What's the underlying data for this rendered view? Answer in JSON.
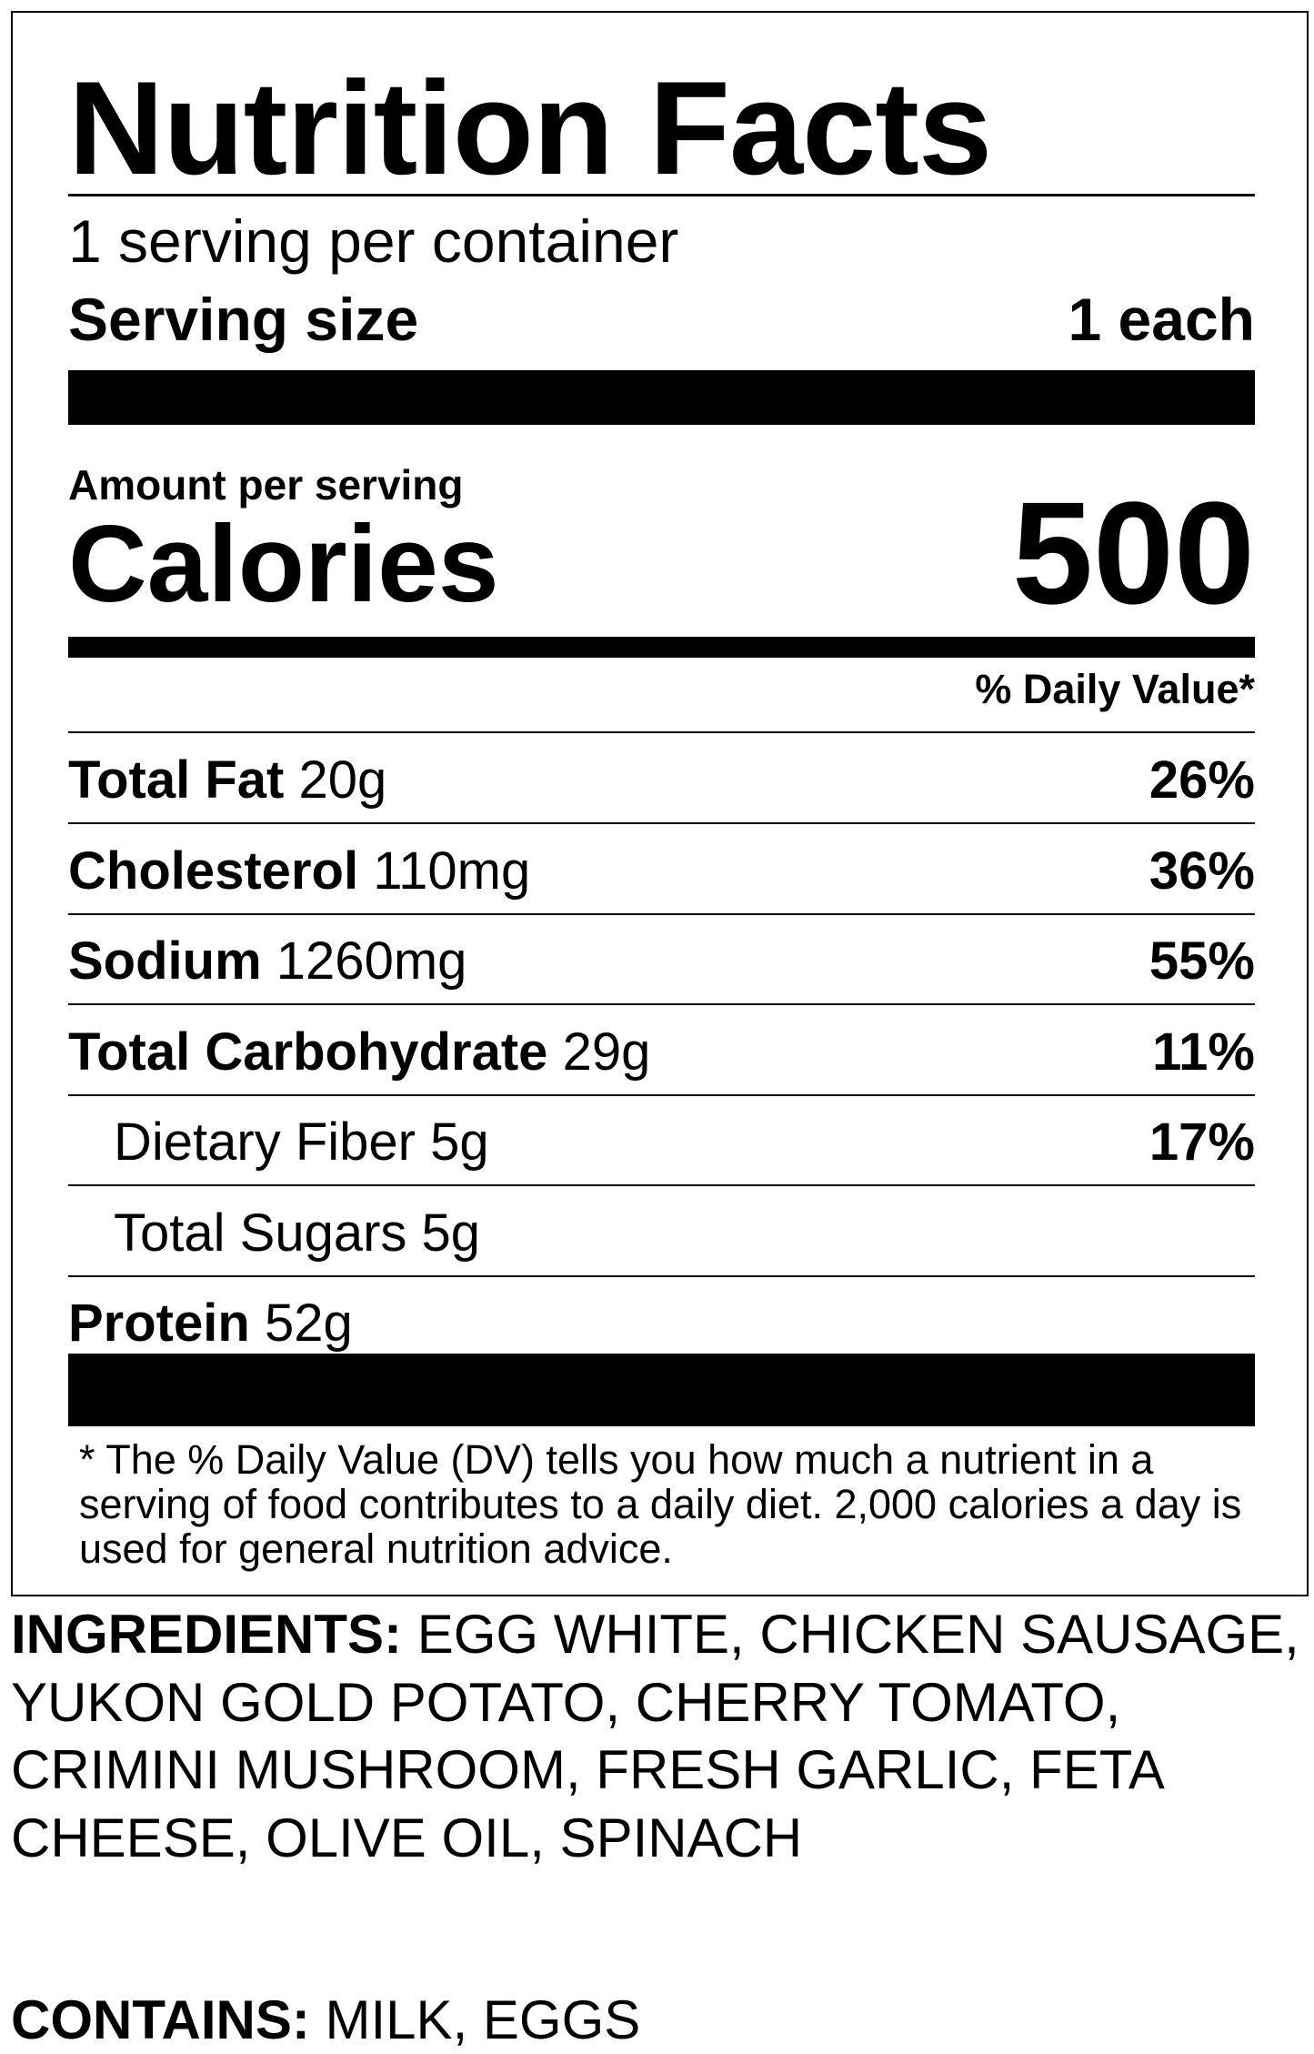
{
  "label": {
    "title": "Nutrition Facts",
    "servings_per_container": "1 serving per container",
    "serving_size_label": "Serving size",
    "serving_size_value": "1 each",
    "amount_per_serving": "Amount per serving",
    "calories_label": "Calories",
    "calories_value": "500",
    "daily_value_header": "% Daily Value*",
    "nutrients": [
      {
        "name": "Total Fat",
        "amount": "20g",
        "dv": "26%",
        "indent": false
      },
      {
        "name": "Cholesterol",
        "amount": "110mg",
        "dv": "36%",
        "indent": false
      },
      {
        "name": "Sodium",
        "amount": "1260mg",
        "dv": "55%",
        "indent": false
      },
      {
        "name": "Total Carbohydrate",
        "amount": "29g",
        "dv": "11%",
        "indent": false
      },
      {
        "name": "Dietary Fiber",
        "amount": "5g",
        "dv": "17%",
        "indent": true
      },
      {
        "name": "Total Sugars",
        "amount": "5g",
        "dv": "",
        "indent": true
      },
      {
        "name": "Protein",
        "amount": "52g",
        "dv": "",
        "indent": false
      }
    ],
    "footnote": "* The % Daily Value (DV) tells you how much a nutrient in a serving of food contributes to a daily diet. 2,000 calories a day is used for general nutrition advice."
  },
  "ingredients": {
    "label": "INGREDIENTS:",
    "text": "EGG WHITE, CHICKEN SAUSAGE, YUKON GOLD POTATO, CHERRY TOMATO, CRIMINI MUSHROOM, FRESH GARLIC, FETA CHEESE, OLIVE OIL, SPINACH"
  },
  "contains": {
    "label": "CONTAINS:",
    "text": "MILK, EGGS"
  }
}
